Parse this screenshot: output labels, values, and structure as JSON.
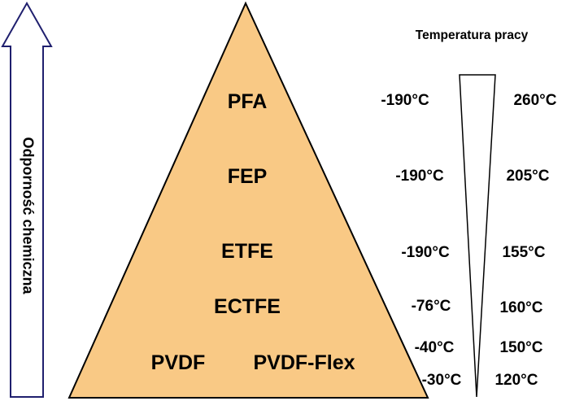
{
  "arrow_label": "Odporność chemiczna",
  "temperature_header": "Temperatura pracy",
  "materials": [
    {
      "name": "PFA",
      "min": "-190°C",
      "max": "260°C"
    },
    {
      "name": "FEP",
      "min": "-190°C",
      "max": "205°C"
    },
    {
      "name": "ETFE",
      "min": "-190°C",
      "max": "155°C"
    },
    {
      "name": "ECTFE",
      "min": "-76°C",
      "max": "160°C"
    },
    {
      "name": "PVDF",
      "min": "-40°C",
      "max": "150°C"
    },
    {
      "name": "PVDF-Flex",
      "min": "-30°C",
      "max": "120°C"
    }
  ],
  "colors": {
    "pyramid_fill": "#f9c985",
    "arrow_stroke": "#1f1f6e",
    "text": "#000000"
  }
}
